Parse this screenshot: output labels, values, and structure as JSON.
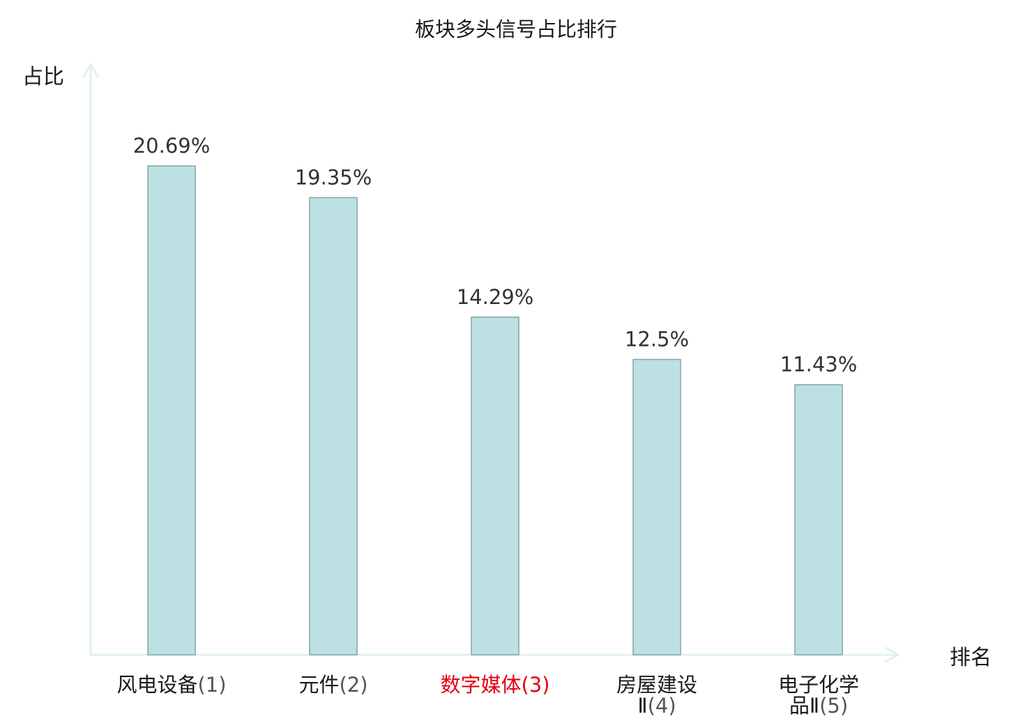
{
  "chart_data": {
    "type": "bar",
    "title": "板块多头信号占比排行",
    "ylabel": "占比",
    "xlabel": "排名",
    "ylim": [
      0,
      25
    ],
    "grid": false,
    "categories": [
      "风电设备",
      "元件",
      "数字媒体",
      "房屋建设Ⅱ",
      "电子化学品Ⅱ"
    ],
    "category_lines": [
      [
        "风电设备"
      ],
      [
        "元件"
      ],
      [
        "数字媒体"
      ],
      [
        "房屋建设",
        "Ⅱ"
      ],
      [
        "电子化学",
        "品Ⅱ"
      ]
    ],
    "ranks": [
      "(1)",
      "(2)",
      "(3)",
      "(4)",
      "(5)"
    ],
    "values": [
      20.69,
      19.35,
      14.29,
      12.5,
      11.43
    ],
    "value_labels": [
      "20.69%",
      "19.35%",
      "14.29%",
      "12.5%",
      "11.43%"
    ],
    "highlight_index": 2
  },
  "colors": {
    "bar_fill": "#bde0e2",
    "bar_stroke": "#86a3a5",
    "axis": "#dff2ef",
    "text": "#1a1a1a",
    "value_text": "#333333",
    "highlight": "#e60012"
  }
}
